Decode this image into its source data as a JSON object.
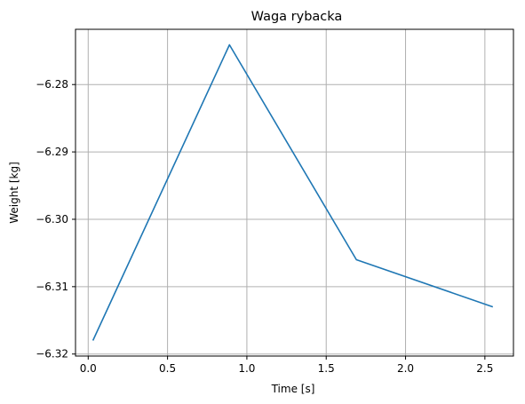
{
  "chart_data": {
    "type": "line",
    "title": "Waga rybacka",
    "xlabel": "Time [s]",
    "ylabel": "Weight [kg]",
    "xlim": [
      -0.08,
      2.68
    ],
    "ylim": [
      -6.3203,
      -6.2718
    ],
    "grid": true,
    "x_ticks": [
      0.0,
      0.5,
      1.0,
      1.5,
      2.0,
      2.5
    ],
    "x_tick_labels": [
      "0.0",
      "0.5",
      "1.0",
      "1.5",
      "2.0",
      "2.5"
    ],
    "y_ticks": [
      -6.28,
      -6.29,
      -6.3,
      -6.31,
      -6.32
    ],
    "y_tick_labels": [
      "−6.28",
      "−6.29",
      "−6.30",
      "−6.31",
      "−6.32"
    ],
    "series": [
      {
        "color": "#1f77b4",
        "x": [
          0.03,
          0.89,
          1.69,
          2.55
        ],
        "y": [
          -6.318,
          -6.2741,
          -6.306,
          -6.313
        ]
      }
    ]
  }
}
